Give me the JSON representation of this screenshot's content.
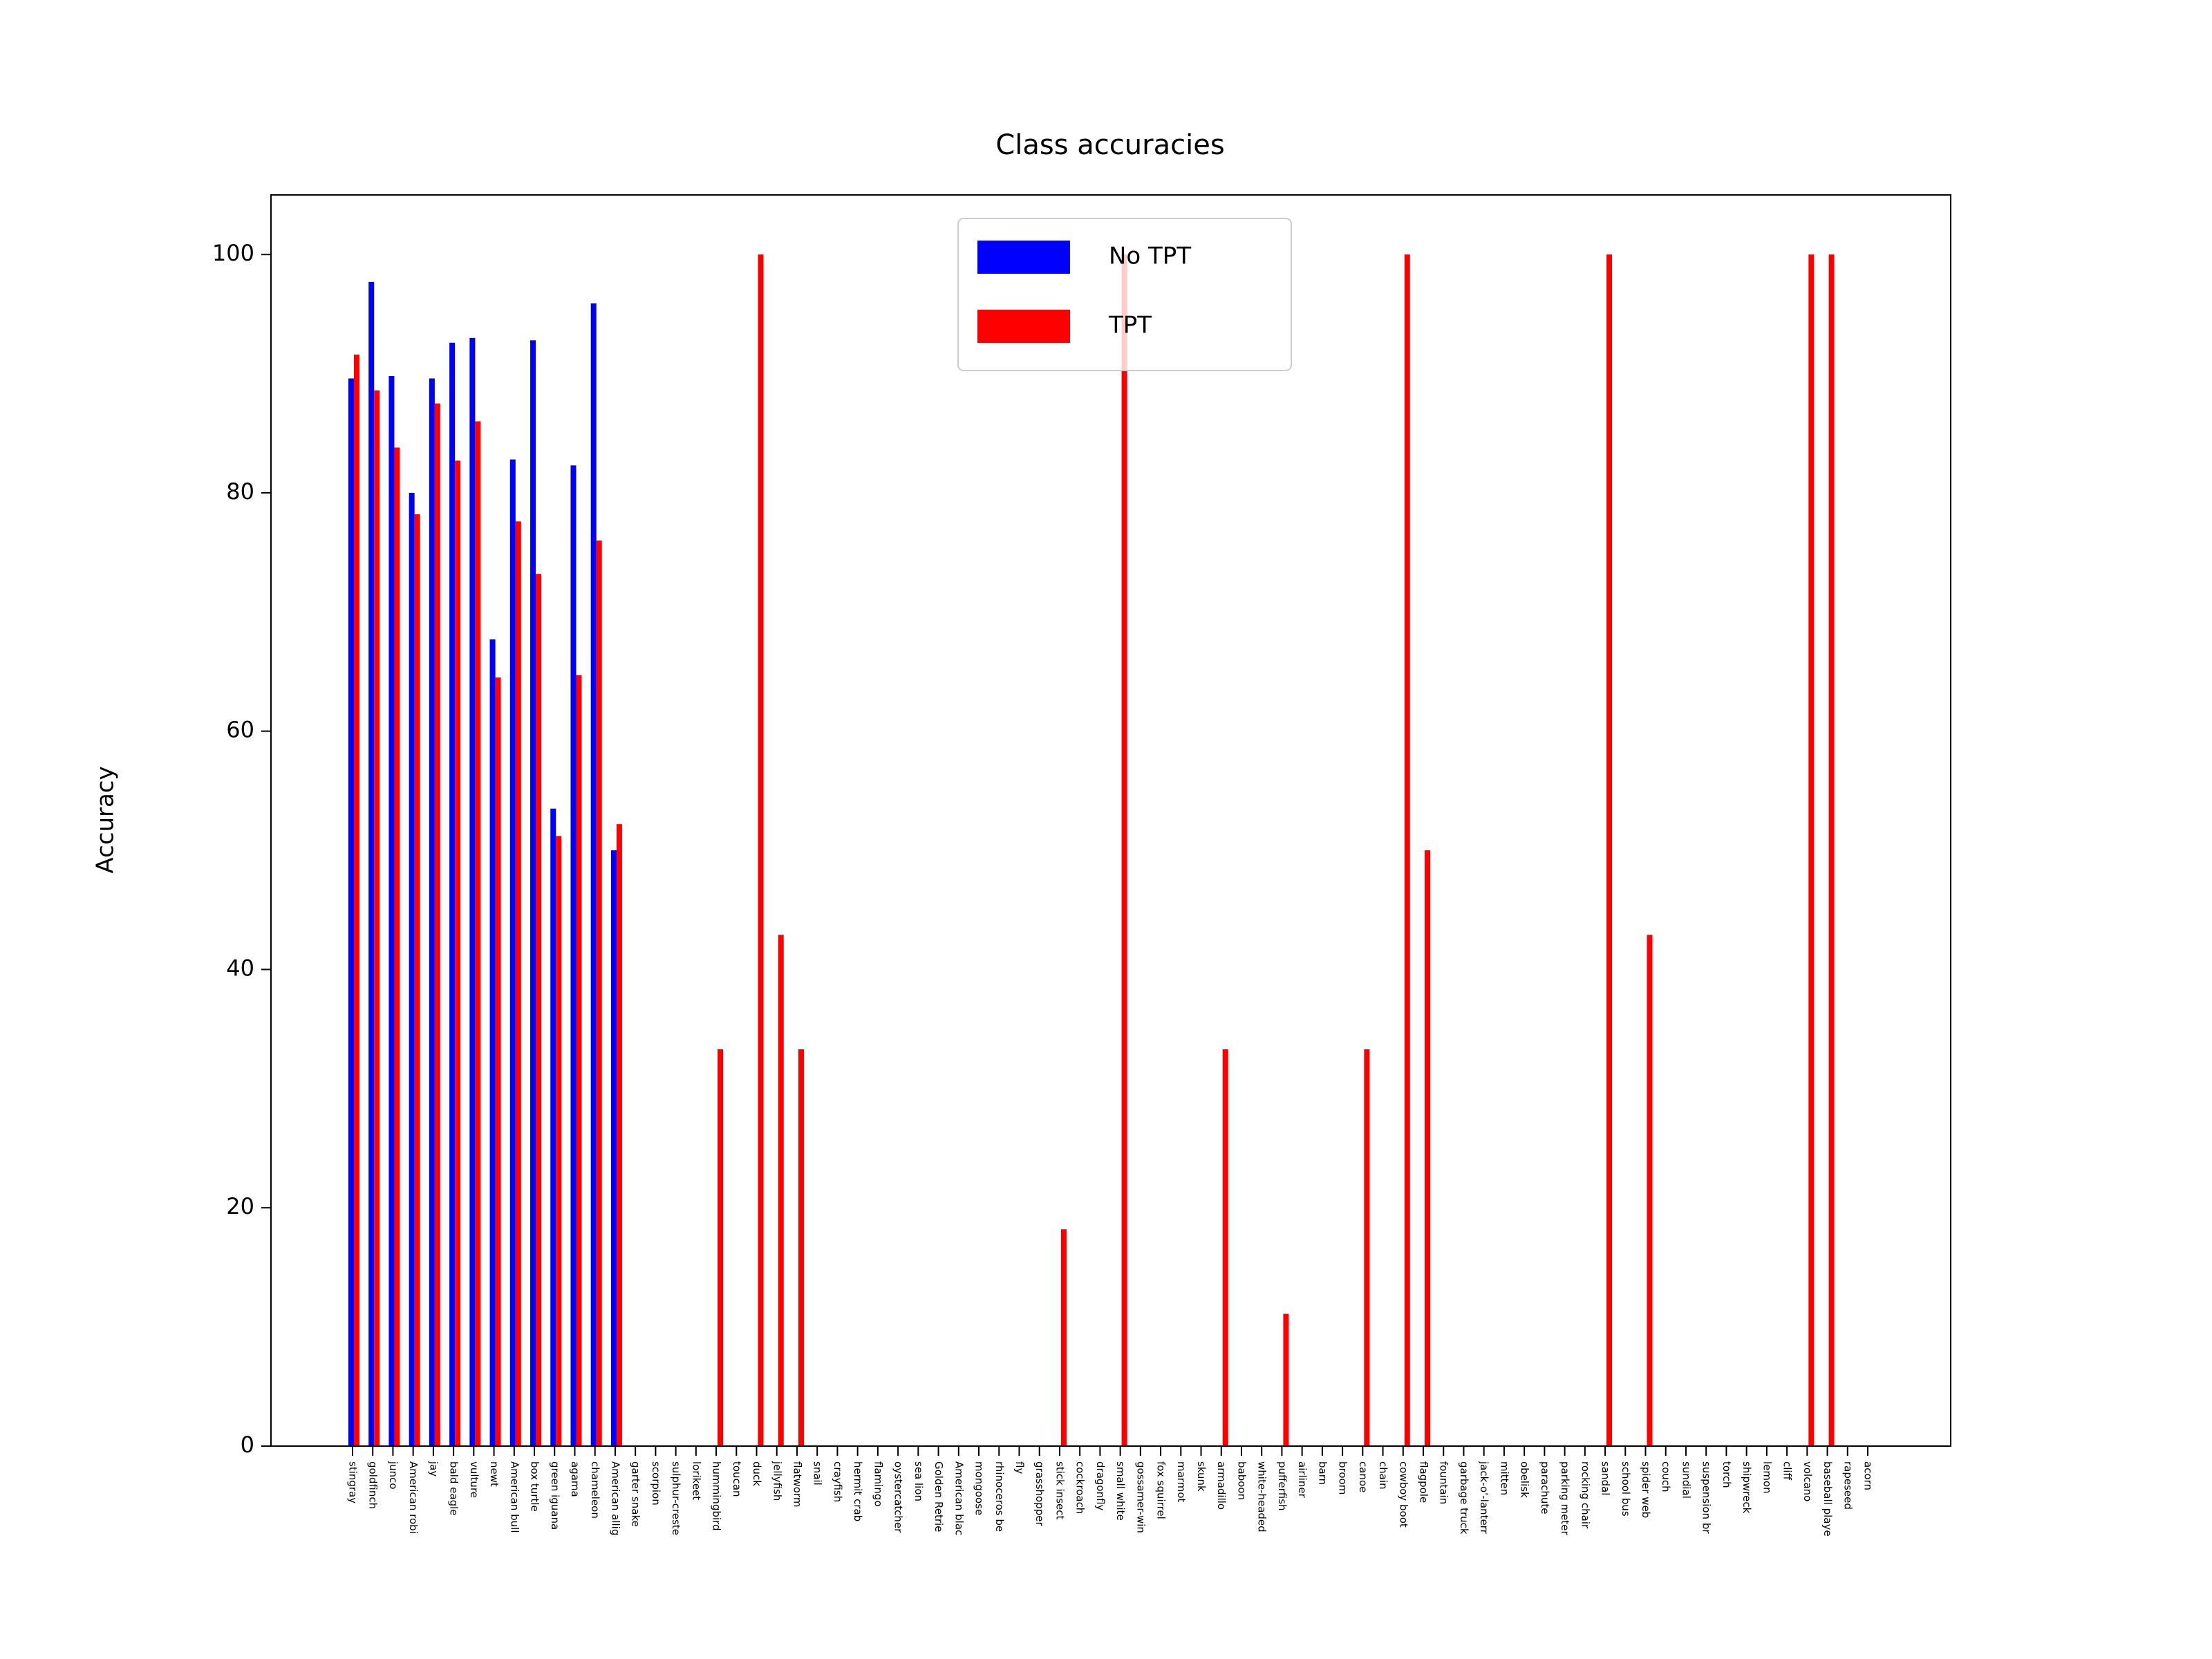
{
  "chart_data": {
    "type": "bar",
    "title": "Class accuracies",
    "y_label": "Accuracy",
    "categories": [
      "stingray",
      "goldfinch",
      "junco",
      "American robi",
      "jay",
      "bald eagle",
      "vulture",
      "newt",
      "American bull",
      "box turtle",
      "green iguana",
      "agama",
      "chameleon",
      "American allig",
      "garter snake",
      "scorpion",
      "sulphur-creste",
      "lorikeet",
      "hummingbird",
      "toucan",
      "duck",
      "jellyfish",
      "flatworm",
      "snail",
      "crayfish",
      "hermit crab",
      "flamingo",
      "oystercatcher",
      "sea lion",
      "Golden Retrie",
      "American blac",
      "mongoose",
      "rhinoceros be",
      "fly",
      "grasshopper",
      "stick insect",
      "cockroach",
      "dragonfly",
      "small white",
      "gossamer-win",
      "fox squirrel",
      "marmot",
      "skunk",
      "armadillo",
      "baboon",
      "white-headed",
      "pufferfish",
      "airliner",
      "barn",
      "broom",
      "canoe",
      "chain",
      "cowboy boot",
      "flagpole",
      "fountain",
      "garbage truck",
      "jack-o'-lanterr",
      "mitten",
      "obelisk",
      "parachute",
      "parking meter",
      "rocking chair",
      "sandal",
      "school bus",
      "spider web",
      "couch",
      "sundial",
      "suspension br",
      "torch",
      "shipwreck",
      "lemon",
      "cliff",
      "volcano",
      "baseball playe",
      "rapeseed",
      "acorn"
    ],
    "series": [
      {
        "name": "No TPT",
        "color": "#0000ff",
        "values": [
          89.6,
          97.7,
          89.8,
          80.0,
          89.6,
          92.6,
          93.0,
          67.7,
          82.8,
          92.8,
          53.5,
          82.3,
          95.9,
          50.0,
          0,
          0,
          0,
          0,
          0,
          0,
          0,
          0,
          0,
          0,
          0,
          0,
          0,
          0,
          0,
          0,
          0,
          0,
          0,
          0,
          0,
          0,
          0,
          0,
          0,
          0,
          0,
          0,
          0,
          0,
          0,
          0,
          0,
          0,
          0,
          0,
          0,
          0,
          0,
          0,
          0,
          0,
          0,
          0,
          0,
          0,
          0,
          0,
          0,
          0,
          0,
          0,
          0,
          0,
          0,
          0,
          0,
          0,
          0,
          0,
          0,
          0
        ]
      },
      {
        "name": "TPT",
        "color": "#ff0000",
        "values": [
          91.6,
          88.6,
          83.8,
          78.2,
          87.5,
          82.7,
          86.0,
          64.5,
          77.6,
          73.2,
          51.2,
          64.7,
          76.0,
          52.2,
          0,
          0,
          0,
          0,
          33.3,
          0,
          100,
          42.9,
          33.3,
          0,
          0,
          0,
          0,
          0,
          0,
          0,
          0,
          0,
          0,
          0,
          0,
          18.2,
          0,
          0,
          100,
          0,
          0,
          0,
          0,
          33.3,
          0,
          0,
          11.1,
          0,
          0,
          0,
          33.3,
          0,
          100,
          50,
          0,
          0,
          0,
          0,
          0,
          0,
          0,
          0,
          100,
          0,
          42.9,
          0,
          0,
          0,
          0,
          0,
          0,
          0,
          100,
          100,
          0,
          0
        ]
      }
    ],
    "ylim": [
      0,
      105
    ],
    "yticks": [
      0,
      20,
      40,
      60,
      80,
      100
    ],
    "grid": false,
    "legend": "upper center"
  }
}
